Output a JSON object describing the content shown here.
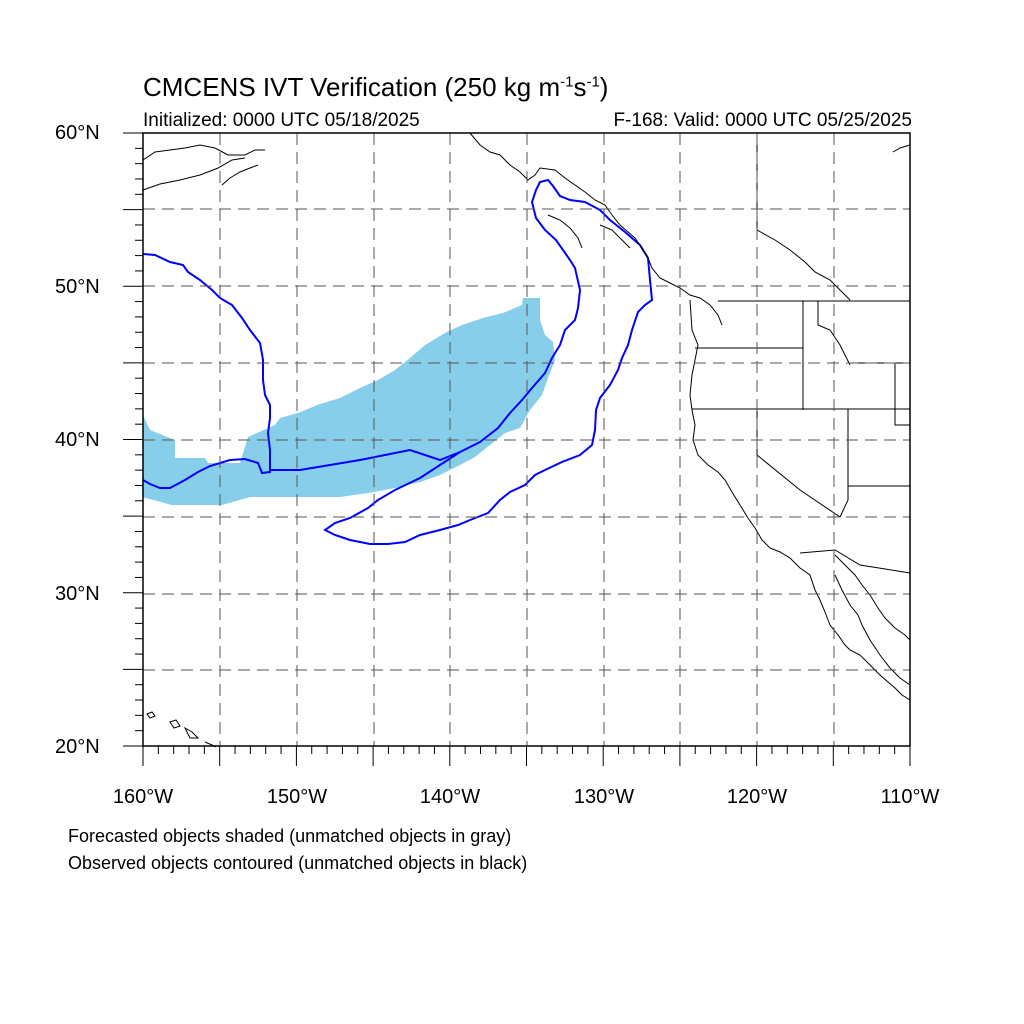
{
  "title": {
    "main": "CMCENS IVT Verification (250 kg m",
    "sup1": "-1",
    "mid": "s",
    "sup2": "-1",
    "end": ")"
  },
  "subtitle": {
    "initialized": "Initialized: 0000 UTC 05/18/2025",
    "valid": "F-168: Valid: 0000 UTC 05/25/2025"
  },
  "axes": {
    "lat_labels": [
      "60°N",
      "50°N",
      "40°N",
      "30°N",
      "20°N"
    ],
    "lon_labels": [
      "160°W",
      "150°W",
      "140°W",
      "130°W",
      "120°W",
      "110°W"
    ]
  },
  "legend": {
    "forecast": "Forecasted objects shaded (unmatched objects in gray)",
    "observed": "Observed objects contoured (unmatched objects in black)"
  },
  "colors": {
    "forecast_fill": "#87ceeb",
    "observed_contour": "#0000ff",
    "coastline": "#000000"
  },
  "map_extent": {
    "lon": [
      -160,
      -110
    ],
    "lat": [
      20,
      60
    ]
  }
}
